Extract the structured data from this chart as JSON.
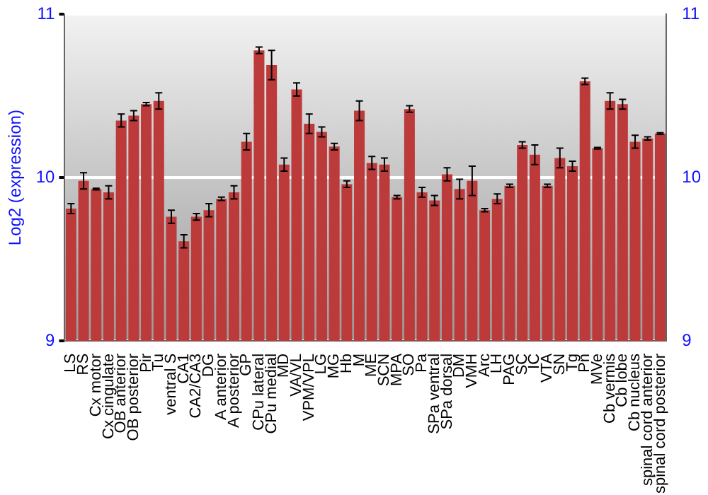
{
  "chart_data": {
    "type": "bar",
    "ylabel": "Log2 (expression)",
    "categories": [
      "LS",
      "RS",
      "Cx motor",
      "Cx cingulate",
      "OB anterior",
      "OB posterior",
      "Pir",
      "Tu",
      "ventral S",
      "CA1",
      "CA2/CA3",
      "DG",
      "A anterior",
      "A posterior",
      "GP",
      "CPu lateral",
      "CPu medial",
      "MD",
      "VA/VL",
      "VPM/VPL",
      "LG",
      "MG",
      "Hb",
      "M",
      "ME",
      "SCN",
      "MPA",
      "SO",
      "Pa",
      "SPa ventral",
      "SPa dorsal",
      "DM",
      "VMH",
      "Arc",
      "LH",
      "PAG",
      "SC",
      "IC",
      "VTA",
      "SN",
      "Tg",
      "Pn",
      "MVe",
      "Cb vermis",
      "Cb lobe",
      "Cb nucleus",
      "spinal cord anterior",
      "spinal cord posterior"
    ],
    "values": [
      9.81,
      9.98,
      9.93,
      9.91,
      10.35,
      10.38,
      10.45,
      10.47,
      9.76,
      9.61,
      9.76,
      9.8,
      9.87,
      9.91,
      10.22,
      10.78,
      10.69,
      10.08,
      10.54,
      10.33,
      10.28,
      10.19,
      9.96,
      10.41,
      10.09,
      10.08,
      9.88,
      10.42,
      9.91,
      9.86,
      10.02,
      9.93,
      9.98,
      9.8,
      9.87,
      9.95,
      10.2,
      10.14,
      9.95,
      10.12,
      10.07,
      10.59,
      10.18,
      10.47,
      10.45,
      10.22,
      10.24,
      10.27
    ],
    "errors": [
      0.03,
      0.05,
      0.005,
      0.04,
      0.04,
      0.03,
      0.01,
      0.05,
      0.04,
      0.04,
      0.02,
      0.04,
      0.01,
      0.04,
      0.05,
      0.02,
      0.09,
      0.04,
      0.04,
      0.06,
      0.03,
      0.02,
      0.02,
      0.06,
      0.04,
      0.04,
      0.01,
      0.02,
      0.03,
      0.03,
      0.04,
      0.06,
      0.09,
      0.01,
      0.03,
      0.01,
      0.02,
      0.06,
      0.01,
      0.06,
      0.03,
      0.02,
      0.005,
      0.05,
      0.03,
      0.04,
      0.01,
      0.005
    ],
    "color": "#bd3a3a",
    "ylim": [
      9,
      11
    ],
    "yticks": [
      9,
      10,
      11
    ],
    "y2lim": [
      9,
      11
    ],
    "y2ticks": [
      9,
      10,
      11
    ],
    "grid": "y",
    "legend": false
  }
}
